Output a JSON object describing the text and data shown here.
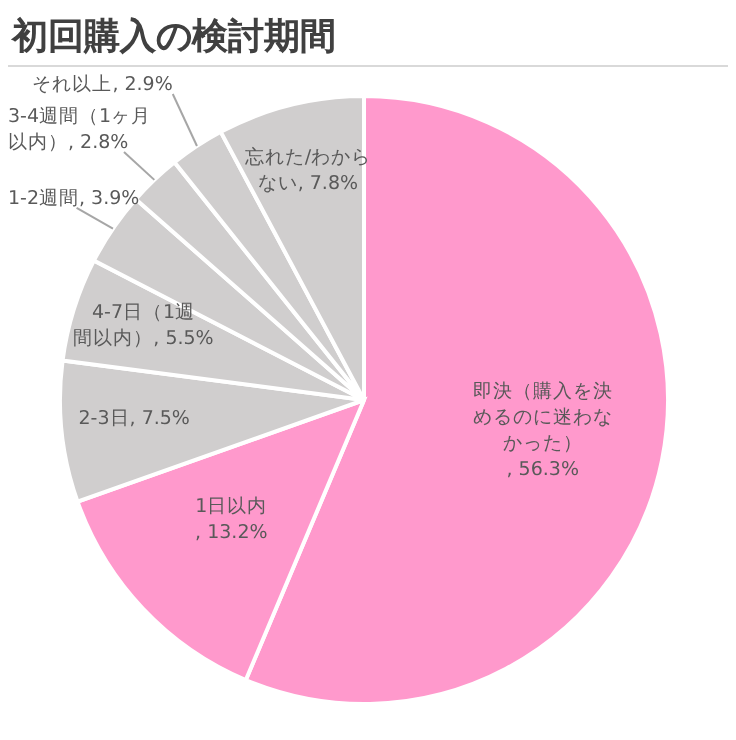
{
  "chart_data": {
    "type": "pie",
    "title": "初回購入の検討期間",
    "categories": [
      "即決（購入を決めるのに迷わなかった）",
      "1日以内",
      "2-3日",
      "4-7日（1週間以内）",
      "1-2週間",
      "3-4週間（1ヶ月以内）",
      "それ以上",
      "忘れた/わからない"
    ],
    "values": [
      56.3,
      13.2,
      7.5,
      5.5,
      3.9,
      2.8,
      2.9,
      7.8
    ],
    "colors": [
      "#ff99cc",
      "#ff99cc",
      "#d0cece",
      "#d0cece",
      "#d0cece",
      "#d0cece",
      "#d0cece",
      "#d0cece"
    ],
    "value_labels": [
      ", 56.3%",
      ", 13.2%",
      ", 7.5%",
      ", 5.5%",
      ", 3.9%",
      ", 2.8%",
      ", 2.9%",
      ", 7.8%"
    ]
  }
}
